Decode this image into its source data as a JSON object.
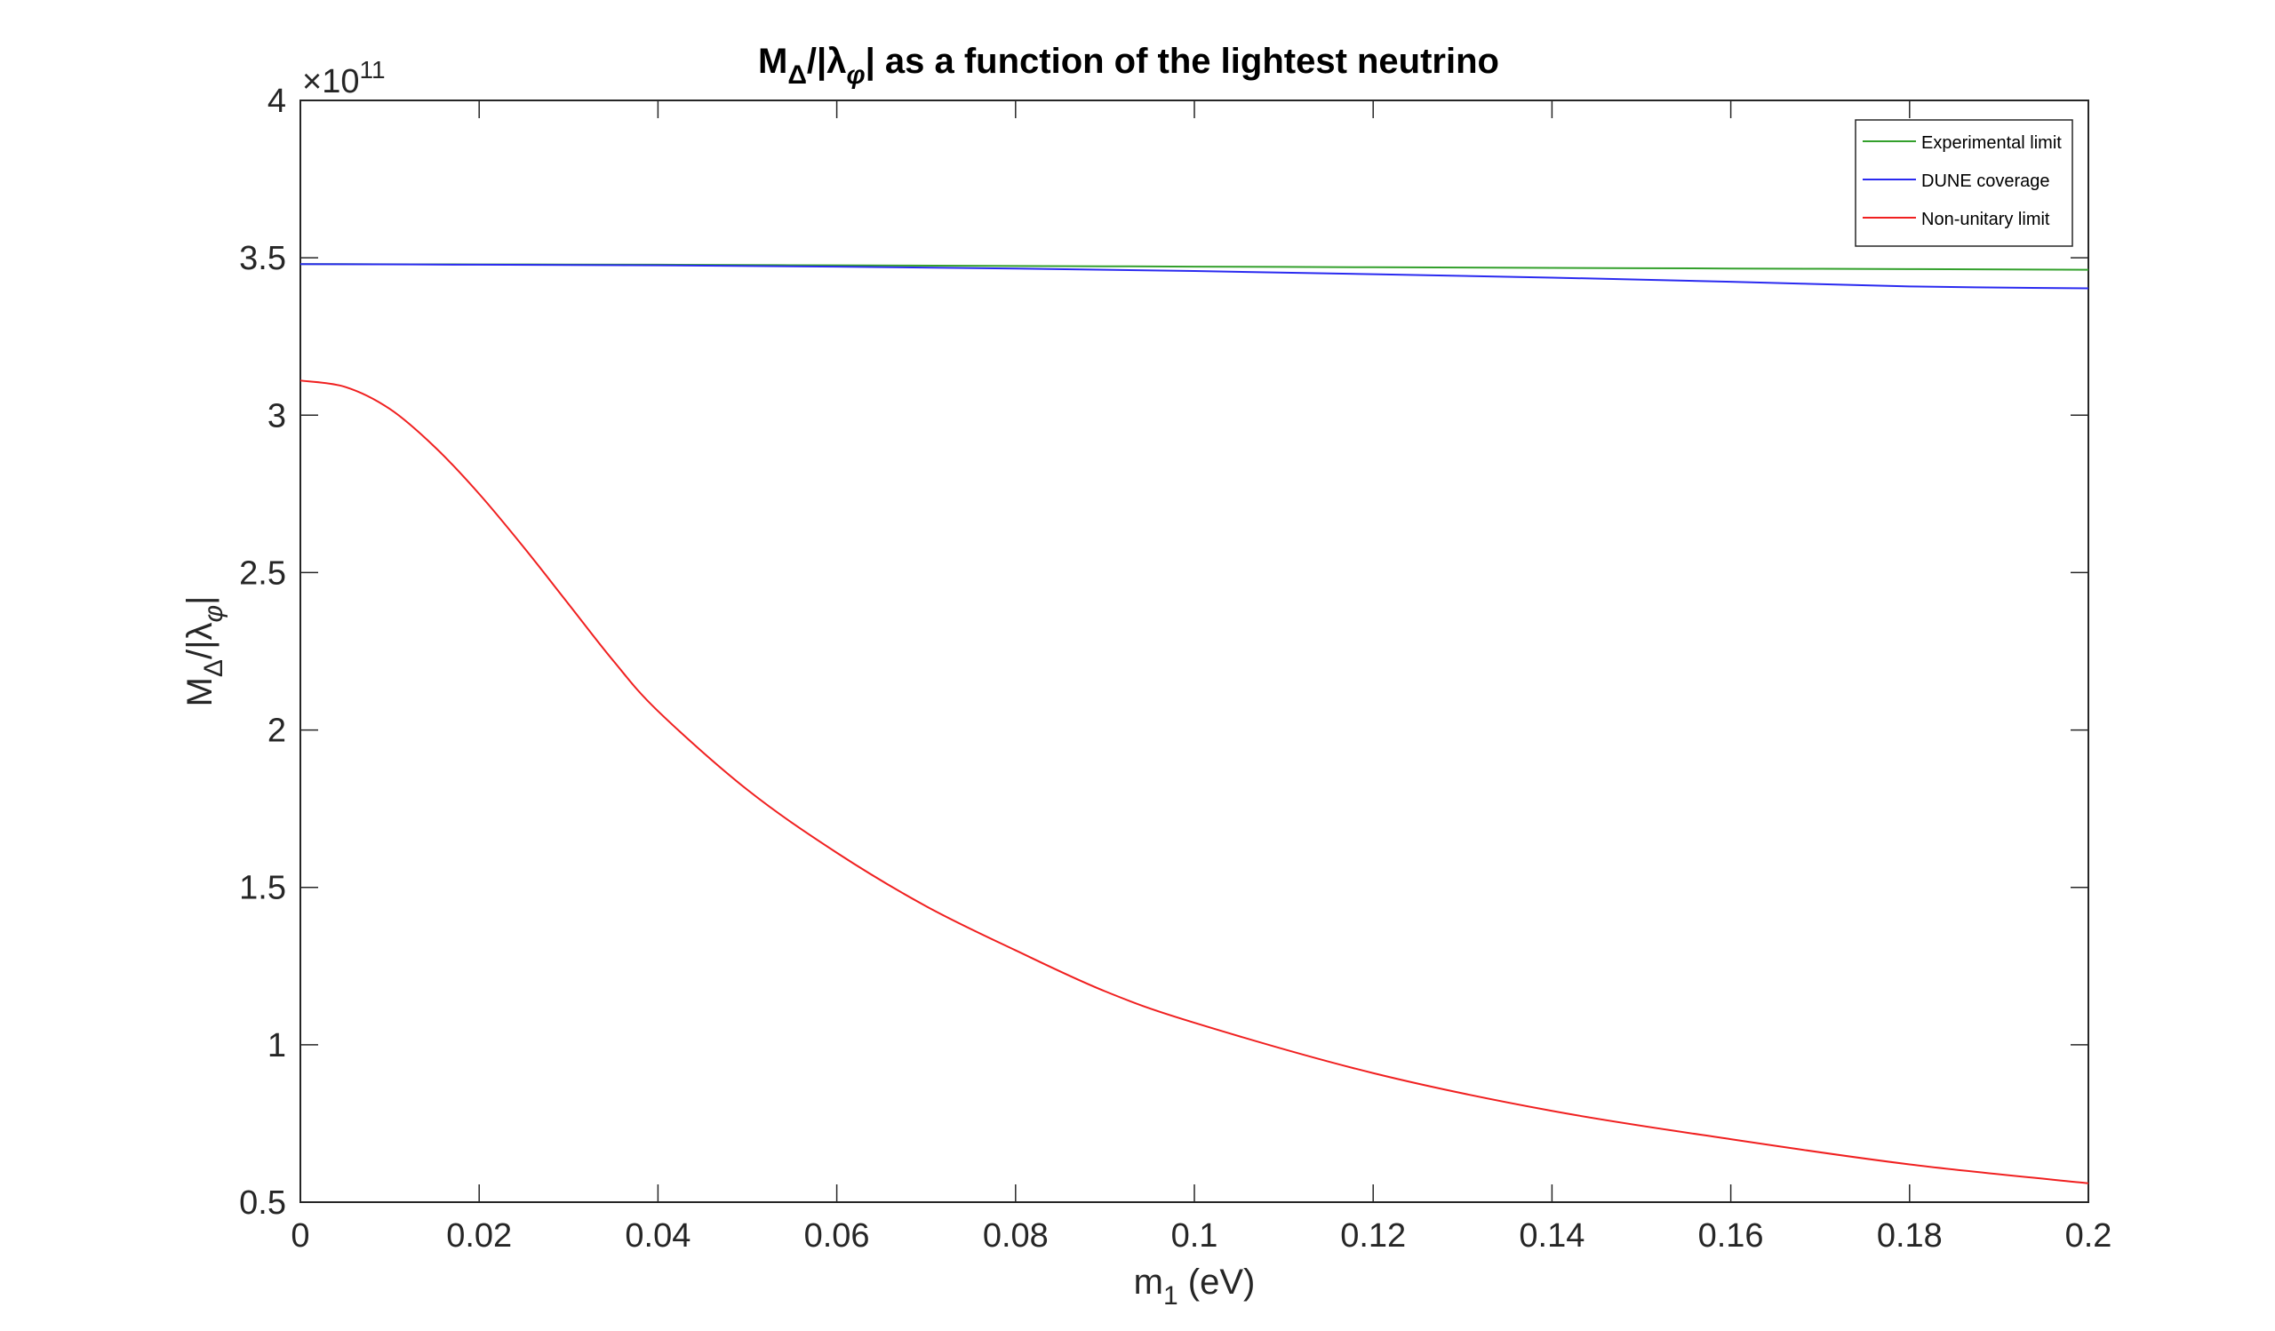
{
  "chart_data": {
    "type": "line",
    "title": {
      "main": "M",
      "main_sub": "Δ",
      "mid": "/|λ",
      "mid_sub": "φ",
      "rest": "| as a function of the lightest neutrino"
    },
    "xlabel": {
      "main": "m",
      "sub": "1",
      "rest": " (eV)"
    },
    "ylabel": {
      "main": "M",
      "sub": "Δ",
      "mid": "/|λ",
      "sub2": "φ",
      "rest": "|"
    },
    "exponent": {
      "prefix": "×10",
      "power": "11"
    },
    "xlim": [
      0,
      0.2
    ],
    "ylim": [
      0.5,
      4
    ],
    "xticks": [
      0,
      0.02,
      0.04,
      0.06,
      0.08,
      0.1,
      0.12,
      0.14,
      0.16,
      0.18,
      0.2
    ],
    "xtick_labels": [
      "0",
      "0.02",
      "0.04",
      "0.06",
      "0.08",
      "0.1",
      "0.12",
      "0.14",
      "0.16",
      "0.18",
      "0.2"
    ],
    "yticks": [
      0.5,
      1,
      1.5,
      2,
      2.5,
      3,
      3.5,
      4
    ],
    "ytick_labels": [
      "0.5",
      "1",
      "1.5",
      "2",
      "2.5",
      "3",
      "3.5",
      "4"
    ],
    "grid": false,
    "legend_position": "top-right",
    "series": [
      {
        "name": "Experimental limit",
        "color": "#33a02c",
        "x": [
          0,
          0.02,
          0.04,
          0.06,
          0.08,
          0.1,
          0.12,
          0.14,
          0.16,
          0.18,
          0.2
        ],
        "y": [
          3.48,
          3.479,
          3.478,
          3.476,
          3.474,
          3.472,
          3.47,
          3.468,
          3.466,
          3.464,
          3.462
        ]
      },
      {
        "name": "DUNE coverage",
        "color": "#2a2af0",
        "x": [
          0,
          0.02,
          0.04,
          0.06,
          0.08,
          0.1,
          0.12,
          0.14,
          0.16,
          0.18,
          0.2
        ],
        "y": [
          3.48,
          3.478,
          3.476,
          3.472,
          3.466,
          3.458,
          3.448,
          3.437,
          3.424,
          3.409,
          3.403
        ]
      },
      {
        "name": "Non-unitary limit",
        "color": "#f02020",
        "x": [
          0,
          0.005,
          0.01,
          0.015,
          0.02,
          0.025,
          0.03,
          0.035,
          0.04,
          0.05,
          0.06,
          0.07,
          0.08,
          0.09,
          0.1,
          0.12,
          0.14,
          0.16,
          0.18,
          0.2
        ],
        "y": [
          3.11,
          3.09,
          3.02,
          2.9,
          2.75,
          2.58,
          2.4,
          2.22,
          2.06,
          1.81,
          1.61,
          1.44,
          1.3,
          1.17,
          1.07,
          0.91,
          0.79,
          0.7,
          0.62,
          0.56
        ]
      }
    ]
  }
}
